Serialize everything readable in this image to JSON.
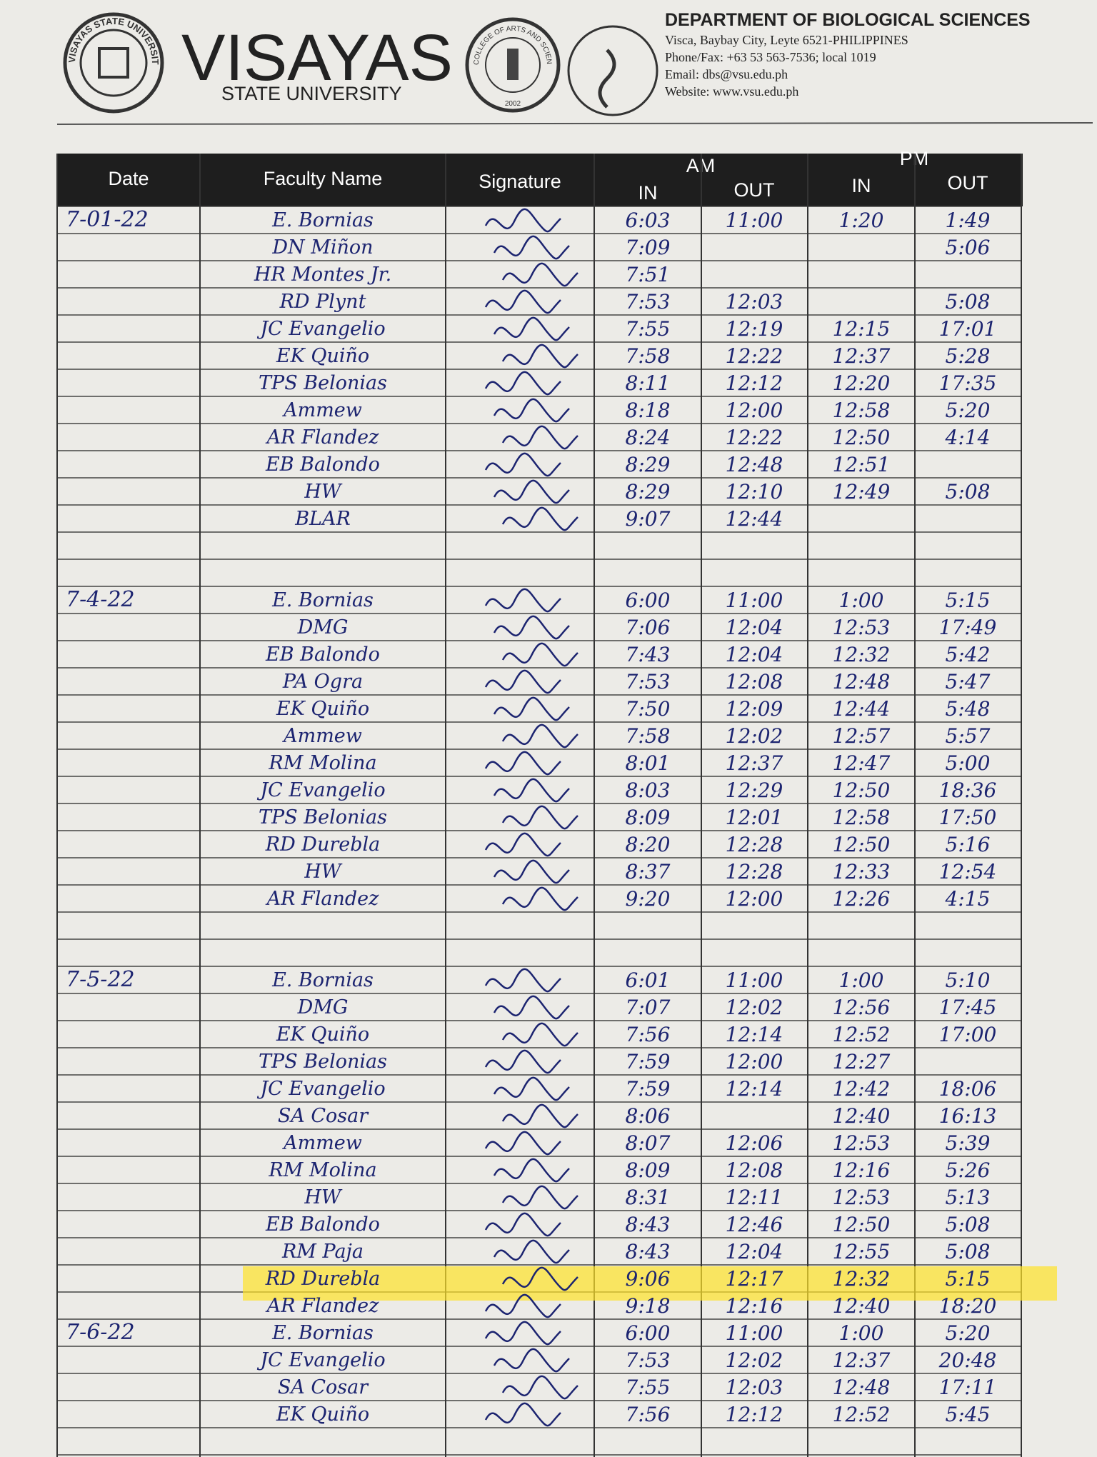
{
  "header": {
    "seal_left": "VISAYAS STATE UNIVERSITY",
    "university": "VISAYAS",
    "subtitle": "STATE UNIVERSITY",
    "seal_mid": "COLLEGE OF ARTS AND SCIENCES",
    "seal_mid_year": "2002",
    "department": "DEPARTMENT OF BIOLOGICAL SCIENCES",
    "address": "Visca, Baybay City, Leyte 6521-PHILIPPINES",
    "phone": "Phone/Fax: +63 53  563-7536; local 1019",
    "email": "Email: dbs@vsu.edu.ph",
    "website": "Website: www.vsu.edu.ph"
  },
  "table": {
    "headers": {
      "date": "Date",
      "name": "Faculty Name",
      "signature": "Signature",
      "am": "AM",
      "pm": "PM",
      "in": "IN",
      "out": "OUT"
    },
    "days": [
      {
        "date": "7-01-22",
        "entries": [
          {
            "name": "E. Bornias",
            "am_in": "6:03",
            "am_out": "11:00",
            "pm_in": "1:20",
            "pm_out": "1:49"
          },
          {
            "name": "DN Miñon",
            "am_in": "7:09",
            "pm_out": "5:06"
          },
          {
            "name": "HR Montes Jr.",
            "am_in": "7:51"
          },
          {
            "name": "RD Plynt",
            "am_in": "7:53",
            "am_out": "12:03",
            "pm_out": "5:08"
          },
          {
            "name": "JC Evangelio",
            "am_in": "7:55",
            "am_out": "12:19",
            "pm_in": "12:15",
            "pm_out": "17:01"
          },
          {
            "name": "EK Quiño",
            "am_in": "7:58",
            "am_out": "12:22",
            "pm_in": "12:37",
            "pm_out": "5:28"
          },
          {
            "name": "TPS Belonias",
            "am_in": "8:11",
            "am_out": "12:12",
            "pm_in": "12:20",
            "pm_out": "17:35"
          },
          {
            "name": "Ammew",
            "am_in": "8:18",
            "am_out": "12:00",
            "pm_in": "12:58",
            "pm_out": "5:20"
          },
          {
            "name": "AR Flandez",
            "am_in": "8:24",
            "am_out": "12:22",
            "pm_in": "12:50",
            "pm_out": "4:14"
          },
          {
            "name": "EB Balondo",
            "am_in": "8:29",
            "am_out": "12:48",
            "pm_in": "12:51"
          },
          {
            "name": "HW",
            "am_in": "8:29",
            "am_out": "12:10",
            "pm_in": "12:49",
            "pm_out": "5:08"
          },
          {
            "name": "BLAR",
            "am_in": "9:07",
            "am_out": "12:44"
          }
        ]
      },
      {
        "date": "7-4-22",
        "entries": [
          {
            "name": "E. Bornias",
            "am_in": "6:00",
            "am_out": "11:00",
            "pm_in": "1:00",
            "pm_out": "5:15"
          },
          {
            "name": "DMG",
            "am_in": "7:06",
            "am_out": "12:04",
            "pm_in": "12:53",
            "pm_out": "17:49"
          },
          {
            "name": "EB Balondo",
            "am_in": "7:43",
            "am_out": "12:04",
            "pm_in": "12:32",
            "pm_out": "5:42"
          },
          {
            "name": "PA Ogra",
            "am_in": "7:53",
            "am_out": "12:08",
            "pm_in": "12:48",
            "pm_out": "5:47"
          },
          {
            "name": "EK Quiño",
            "am_in": "7:50",
            "am_out": "12:09",
            "pm_in": "12:44",
            "pm_out": "5:48"
          },
          {
            "name": "Ammew",
            "am_in": "7:58",
            "am_out": "12:02",
            "pm_in": "12:57",
            "pm_out": "5:57"
          },
          {
            "name": "RM Molina",
            "am_in": "8:01",
            "am_out": "12:37",
            "pm_in": "12:47",
            "pm_out": "5:00"
          },
          {
            "name": "JC Evangelio",
            "am_in": "8:03",
            "am_out": "12:29",
            "pm_in": "12:50",
            "pm_out": "18:36"
          },
          {
            "name": "TPS Belonias",
            "am_in": "8:09",
            "am_out": "12:01",
            "pm_in": "12:58",
            "pm_out": "17:50"
          },
          {
            "name": "RD Durebla",
            "am_in": "8:20",
            "am_out": "12:28",
            "pm_in": "12:50",
            "pm_out": "5:16"
          },
          {
            "name": "HW",
            "am_in": "8:37",
            "am_out": "12:28",
            "pm_in": "12:33",
            "pm_out": "12:54"
          },
          {
            "name": "AR Flandez",
            "am_in": "9:20",
            "am_out": "12:00",
            "pm_in": "12:26",
            "pm_out": "4:15"
          }
        ]
      },
      {
        "date": "7-5-22",
        "entries": [
          {
            "name": "E. Bornias",
            "am_in": "6:01",
            "am_out": "11:00",
            "pm_in": "1:00",
            "pm_out": "5:10"
          },
          {
            "name": "DMG",
            "am_in": "7:07",
            "am_out": "12:02",
            "pm_in": "12:56",
            "pm_out": "17:45"
          },
          {
            "name": "EK Quiño",
            "am_in": "7:56",
            "am_out": "12:14",
            "pm_in": "12:52",
            "pm_out": "17:00"
          },
          {
            "name": "TPS Belonias",
            "am_in": "7:59",
            "am_out": "12:00",
            "pm_in": "12:27"
          },
          {
            "name": "JC Evangelio",
            "am_in": "7:59",
            "am_out": "12:14",
            "pm_in": "12:42",
            "pm_out": "18:06"
          },
          {
            "name": "SA Cosar",
            "am_in": "8:06",
            "pm_in": "12:40",
            "pm_out": "16:13"
          },
          {
            "name": "Ammew",
            "am_in": "8:07",
            "am_out": "12:06",
            "pm_in": "12:53",
            "pm_out": "5:39"
          },
          {
            "name": "RM Molina",
            "am_in": "8:09",
            "am_out": "12:08",
            "pm_in": "12:16",
            "pm_out": "5:26"
          },
          {
            "name": "HW",
            "am_in": "8:31",
            "am_out": "12:11",
            "pm_in": "12:53",
            "pm_out": "5:13"
          },
          {
            "name": "EB Balondo",
            "am_in": "8:43",
            "am_out": "12:46",
            "pm_in": "12:50",
            "pm_out": "5:08"
          },
          {
            "name": "RM Paja",
            "am_in": "8:43",
            "am_out": "12:04",
            "pm_in": "12:55",
            "pm_out": "5:08"
          },
          {
            "name": "RD Durebla",
            "am_in": "9:06",
            "am_out": "12:17",
            "pm_in": "12:32",
            "pm_out": "5:15",
            "highlighted": true
          },
          {
            "name": "AR Flandez",
            "am_in": "9:18",
            "am_out": "12:16",
            "pm_in": "12:40",
            "pm_out": "18:20"
          }
        ]
      },
      {
        "date": "7-6-22",
        "entries": [
          {
            "name": "E. Bornias",
            "am_in": "6:00",
            "am_out": "11:00",
            "pm_in": "1:00",
            "pm_out": "5:20"
          },
          {
            "name": "JC Evangelio",
            "am_in": "7:53",
            "am_out": "12:02",
            "pm_in": "12:37",
            "pm_out": "20:48"
          },
          {
            "name": "SA Cosar",
            "am_in": "7:55",
            "am_out": "12:03",
            "pm_in": "12:48",
            "pm_out": "17:11"
          },
          {
            "name": "EK Quiño",
            "am_in": "7:56",
            "am_out": "12:12",
            "pm_in": "12:52",
            "pm_out": "5:45"
          }
        ]
      }
    ]
  }
}
